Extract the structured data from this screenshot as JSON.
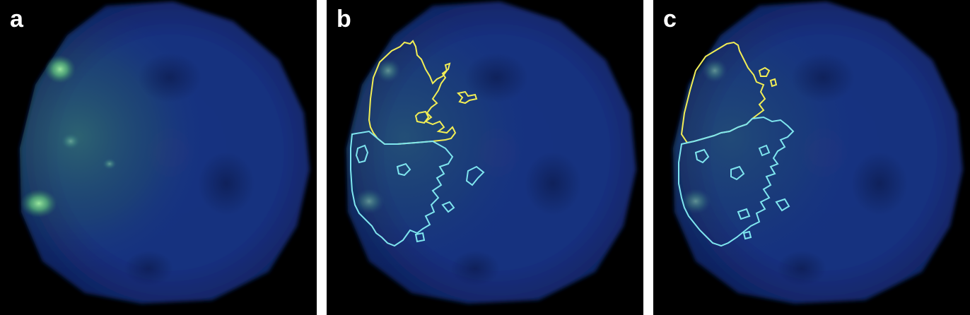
{
  "panels": [
    {
      "id": "a",
      "label": "a",
      "overlay": "none"
    },
    {
      "id": "b",
      "label": "b",
      "overlay": "segmentation-outlines"
    },
    {
      "id": "c",
      "label": "c",
      "overlay": "segmentation-outlines"
    }
  ],
  "colors": {
    "background": "#000000",
    "nucleus": "#1c3a8c",
    "nucleus_dark": "#101f5a",
    "signal_green": "#7fe08a",
    "outline_yellow": "#f2ee55",
    "outline_cyan": "#7fe6ef",
    "label": "#ffffff"
  }
}
